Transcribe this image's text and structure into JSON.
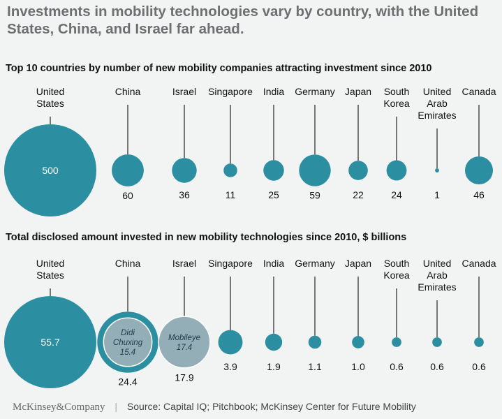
{
  "title": "Investments in mobility technologies vary by country, with the United States, China, and Israel far ahead.",
  "footer": {
    "brand": "McKinsey&Company",
    "separator": "|",
    "source": "Source: Capital IQ; Pitchbook; McKinsey Center for Future Mobility"
  },
  "colors": {
    "bubble": "#2b8fa1",
    "highlight": "#94aeb8",
    "stem": "#333333",
    "background": "#f2f3f3"
  },
  "chart_data": [
    {
      "type": "bubble",
      "title": "Top 10 countries by number of new mobility companies attracting investment since 2010",
      "categories": [
        [
          "United",
          "States"
        ],
        [
          "China"
        ],
        [
          "Israel"
        ],
        [
          "Singapore"
        ],
        [
          "India"
        ],
        [
          "Germany"
        ],
        [
          "Japan"
        ],
        [
          "South",
          "Korea"
        ],
        [
          "United",
          "Arab",
          "Emirates"
        ],
        [
          "Canada"
        ]
      ],
      "values": [
        500,
        60,
        36,
        11,
        25,
        59,
        22,
        24,
        1,
        46
      ],
      "labels": [
        "500",
        "60",
        "36",
        "11",
        "25",
        "59",
        "22",
        "24",
        "1",
        "46"
      ],
      "inside_label_index": 0
    },
    {
      "type": "bubble",
      "title": "Total disclosed amount invested in new mobility technologies since 2010, $ billions",
      "categories": [
        [
          "United",
          "States"
        ],
        [
          "China"
        ],
        [
          "Israel"
        ],
        [
          "Singapore"
        ],
        [
          "India"
        ],
        [
          "Germany"
        ],
        [
          "Japan"
        ],
        [
          "South",
          "Korea"
        ],
        [
          "United",
          "Arab",
          "Emirates"
        ],
        [
          "Canada"
        ]
      ],
      "values": [
        55.7,
        24.4,
        17.9,
        3.9,
        1.9,
        1.1,
        1.0,
        0.6,
        0.6,
        0.6
      ],
      "labels": [
        "55.7",
        "24.4",
        "17.9",
        "3.9",
        "1.9",
        "1.1",
        "1.0",
        "0.6",
        "0.6",
        "0.6"
      ],
      "inside_label_index": 0,
      "highlights": {
        "1": {
          "lines": [
            "Didi",
            "Chuxing",
            "15.4"
          ],
          "value": 15.4
        },
        "2": {
          "lines": [
            "Mobileye",
            "17.4"
          ],
          "value": 17.4
        }
      }
    }
  ]
}
